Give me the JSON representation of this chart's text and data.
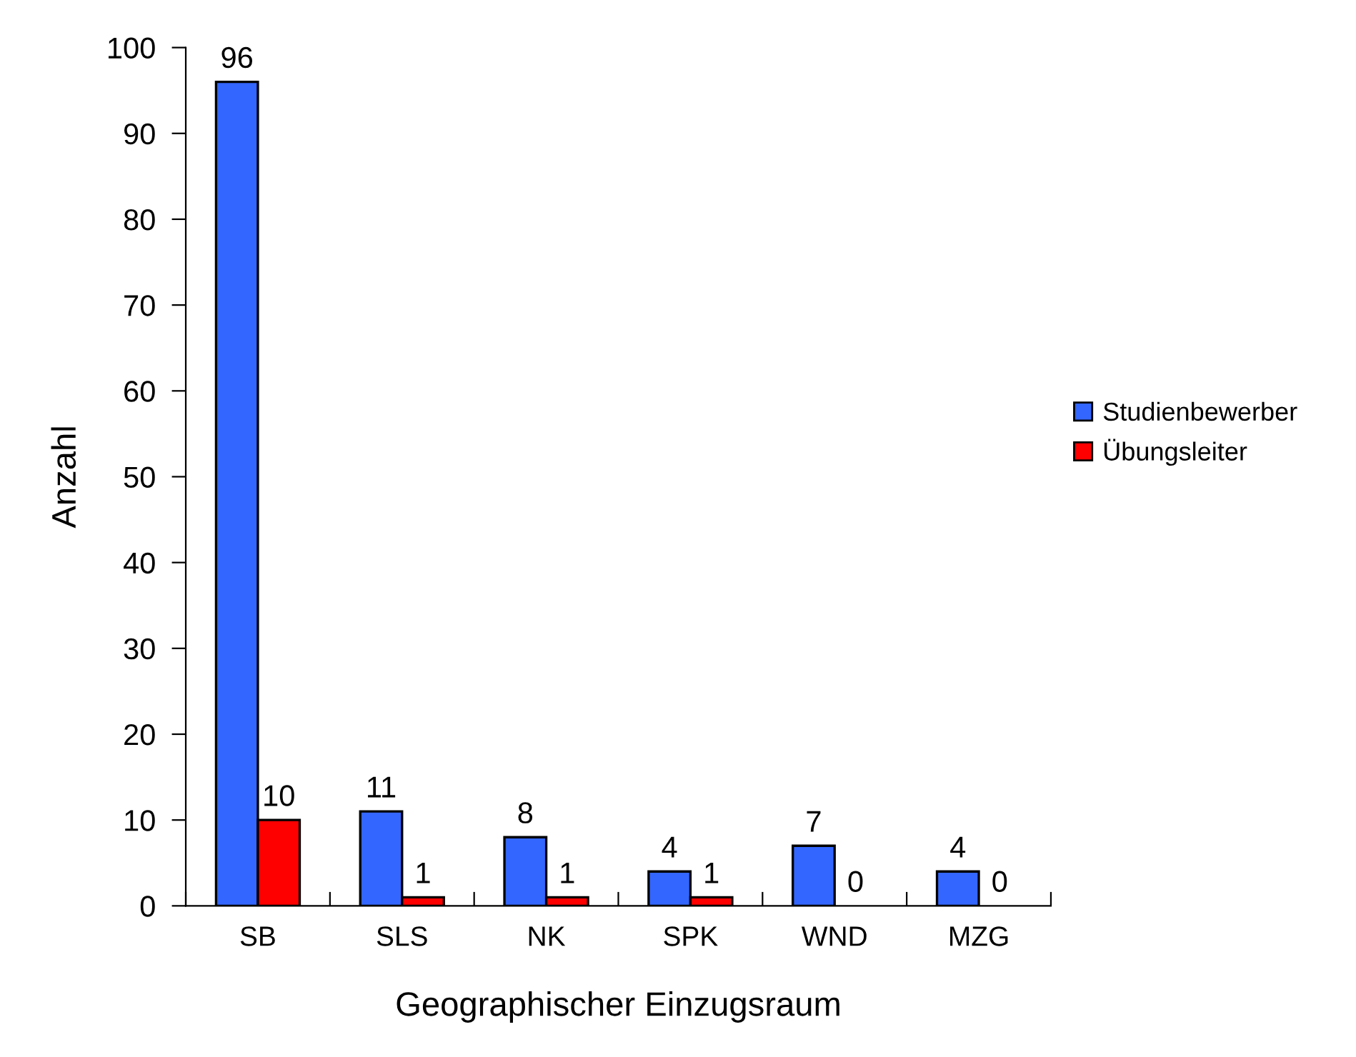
{
  "chart_data": {
    "type": "bar",
    "xlabel": "Geographischer Einzugsraum",
    "ylabel": "Anzahl",
    "categories": [
      "SB",
      "SLS",
      "NK",
      "SPK",
      "WND",
      "MZG"
    ],
    "series": [
      {
        "name": "Studienbewerber",
        "color": "#3366ff",
        "values": [
          96,
          11,
          8,
          4,
          7,
          4
        ]
      },
      {
        "name": "Übungsleiter",
        "color": "#ff0000",
        "values": [
          10,
          1,
          1,
          1,
          0,
          0
        ]
      }
    ],
    "ylim": [
      0,
      100
    ],
    "yticks": [
      0,
      10,
      20,
      30,
      40,
      50,
      60,
      70,
      80,
      90,
      100
    ],
    "data_labels": true,
    "grid": false,
    "legend": "right"
  }
}
